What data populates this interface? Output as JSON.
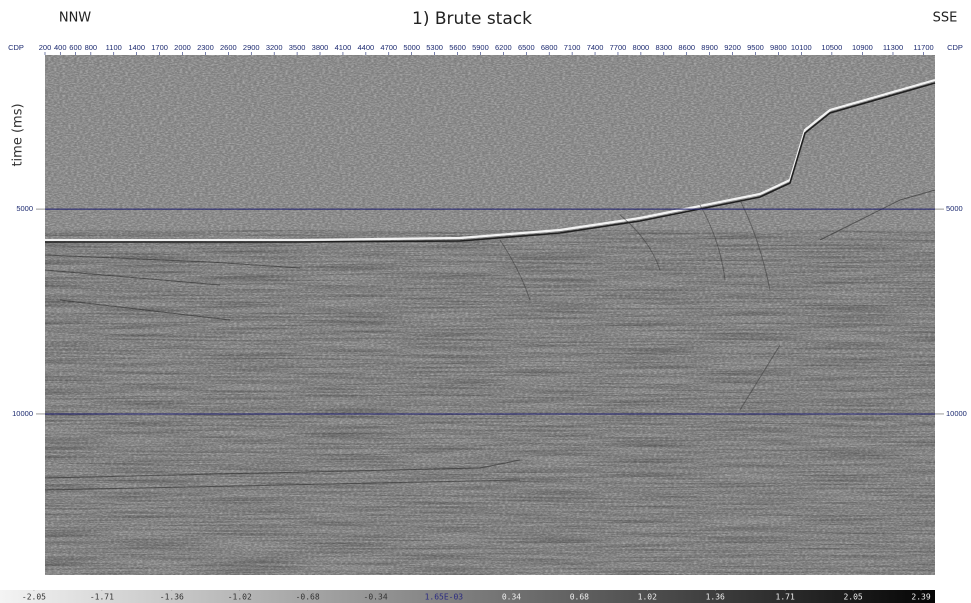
{
  "chart_data": {
    "type": "seismic",
    "title": "1) Brute stack",
    "left_label": "NNW",
    "right_label": "SSE",
    "x_label": "CDP",
    "y_label": "time (ms)",
    "xlim": [
      200,
      11850
    ],
    "xticks": [
      200,
      400,
      600,
      800,
      1100,
      1400,
      1700,
      2000,
      2300,
      2600,
      2900,
      3200,
      3500,
      3800,
      4100,
      4400,
      4700,
      5000,
      5300,
      5600,
      5900,
      6200,
      6500,
      6800,
      7100,
      7400,
      7700,
      8000,
      8300,
      8600,
      8900,
      9200,
      9500,
      9800,
      10100,
      10500,
      10900,
      11300,
      11700
    ],
    "ylim": [
      1240,
      13930
    ],
    "yticks": [
      5000,
      10000
    ],
    "grid": true,
    "grid_color": "#1c1c6e",
    "colorbar": {
      "lim": [
        -2.22,
        2.46
      ],
      "ticks": [
        -2.05,
        -1.71,
        -1.36,
        -1.02,
        -0.68,
        -0.34,
        {
          "value": 0.00165,
          "label": "1.65E-03"
        },
        0.34,
        0.68,
        1.02,
        1.36,
        1.71,
        2.05,
        2.39
      ]
    }
  }
}
